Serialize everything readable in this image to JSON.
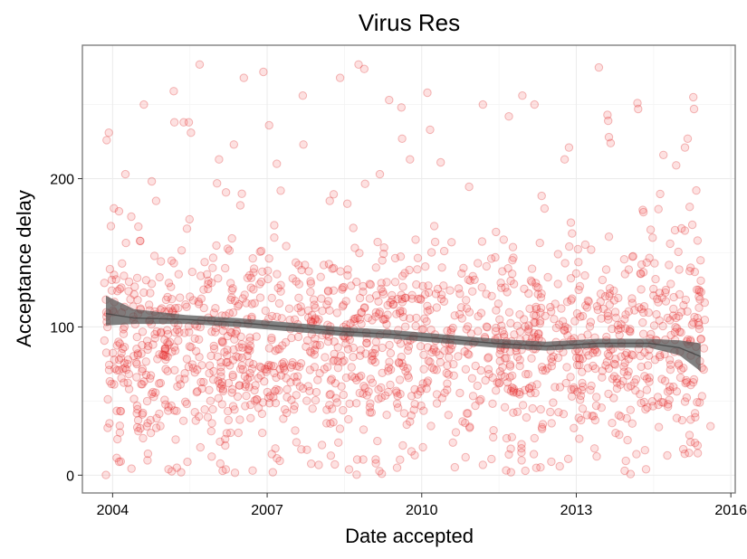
{
  "chart_data": {
    "type": "scatter",
    "title": "Virus Res",
    "xlabel": "Date accepted",
    "ylabel": "Acceptance delay",
    "x_ticks": [
      "2004",
      "2007",
      "2010",
      "2013",
      "2016"
    ],
    "y_ticks": [
      "0",
      "100",
      "200"
    ],
    "xlim": [
      "2003-06-01",
      "2016-02-01"
    ],
    "ylim": [
      -12,
      290
    ],
    "grid": true,
    "legend": "none",
    "point_color": "#f04040",
    "smooth_color": "#555555",
    "smooth": {
      "x": [
        "2003-11-15",
        "2004-06-01",
        "2005-06-01",
        "2006-06-01",
        "2007-06-01",
        "2008-06-01",
        "2009-06-01",
        "2010-06-01",
        "2011-06-01",
        "2012-06-01",
        "2013-06-01",
        "2014-06-01",
        "2015-01-01",
        "2015-06-01"
      ],
      "y": [
        109,
        106,
        105,
        103,
        100,
        97,
        95,
        92,
        89,
        87,
        89,
        89,
        86,
        80
      ],
      "band_low": [
        101,
        102,
        102,
        100,
        97,
        94,
        92,
        89,
        86,
        84,
        86,
        86,
        81,
        70
      ],
      "band_high": [
        121,
        112,
        108,
        106,
        103,
        100,
        98,
        95,
        92,
        90,
        92,
        92,
        91,
        89
      ]
    },
    "points": [
      {
        "x": "2003-11-20",
        "y": 226
      },
      {
        "x": "2003-12-05",
        "y": 231
      },
      {
        "x": "2004-01-10",
        "y": 180
      },
      {
        "x": "2003-12-20",
        "y": 168
      },
      {
        "x": "2004-02-15",
        "y": 178
      },
      {
        "x": "2004-04-01",
        "y": 203
      },
      {
        "x": "2004-08-10",
        "y": 250
      },
      {
        "x": "2004-11-05",
        "y": 185
      },
      {
        "x": "2005-03-10",
        "y": 259
      },
      {
        "x": "2005-03-15",
        "y": 238
      },
      {
        "x": "2005-05-20",
        "y": 238
      },
      {
        "x": "2005-06-25",
        "y": 238
      },
      {
        "x": "2005-07-10",
        "y": 231
      },
      {
        "x": "2005-09-10",
        "y": 277
      },
      {
        "x": "2006-01-25",
        "y": 213
      },
      {
        "x": "2006-05-10",
        "y": 223
      },
      {
        "x": "2006-06-25",
        "y": 182
      },
      {
        "x": "2006-07-20",
        "y": 268
      },
      {
        "x": "2006-12-05",
        "y": 272
      },
      {
        "x": "2007-03-10",
        "y": 210
      },
      {
        "x": "2007-01-15",
        "y": 236
      },
      {
        "x": "2007-09-10",
        "y": 256
      },
      {
        "x": "2007-09-15",
        "y": 223
      },
      {
        "x": "2008-03-20",
        "y": 185
      },
      {
        "x": "2008-06-01",
        "y": 268
      },
      {
        "x": "2008-10-10",
        "y": 277
      },
      {
        "x": "2008-11-20",
        "y": 274
      },
      {
        "x": "2009-03-10",
        "y": 203
      },
      {
        "x": "2009-05-15",
        "y": 253
      },
      {
        "x": "2009-08-10",
        "y": 248
      },
      {
        "x": "2009-08-15",
        "y": 227
      },
      {
        "x": "2009-10-10",
        "y": 213
      },
      {
        "x": "2010-02-10",
        "y": 258
      },
      {
        "x": "2010-03-01",
        "y": 233
      },
      {
        "x": "2010-05-15",
        "y": 211
      },
      {
        "x": "2011-03-10",
        "y": 250
      },
      {
        "x": "2011-09-10",
        "y": 242
      },
      {
        "x": "2011-12-15",
        "y": 256
      },
      {
        "x": "2012-03-10",
        "y": 250
      },
      {
        "x": "2012-10-10",
        "y": 213
      },
      {
        "x": "2012-11-10",
        "y": 221
      },
      {
        "x": "2013-06-10",
        "y": 275
      },
      {
        "x": "2013-08-10",
        "y": 243
      },
      {
        "x": "2013-08-15",
        "y": 239
      },
      {
        "x": "2013-08-20",
        "y": 228
      },
      {
        "x": "2013-09-01",
        "y": 224
      },
      {
        "x": "2014-03-10",
        "y": 251
      },
      {
        "x": "2014-03-15",
        "y": 247
      },
      {
        "x": "2014-09-10",
        "y": 216
      },
      {
        "x": "2014-12-10",
        "y": 209
      },
      {
        "x": "2015-02-10",
        "y": 221
      },
      {
        "x": "2015-03-01",
        "y": 227
      },
      {
        "x": "2015-04-10",
        "y": 255
      },
      {
        "x": "2015-04-15",
        "y": 247
      },
      {
        "x": "2015-03-15",
        "y": 181
      },
      {
        "x": "2015-05-01",
        "y": 192
      },
      {
        "x": "2003-12-10",
        "y": 35
      },
      {
        "x": "2004-09-05",
        "y": 10
      },
      {
        "x": "2005-02-01",
        "y": 4
      },
      {
        "x": "2005-04-01",
        "y": 5
      },
      {
        "x": "2005-05-01",
        "y": 2
      },
      {
        "x": "2005-06-15",
        "y": 9
      },
      {
        "x": "2006-03-10",
        "y": 20
      },
      {
        "x": "2007-02-10",
        "y": 2
      },
      {
        "x": "2008-05-20",
        "y": 22
      },
      {
        "x": "2009-02-10",
        "y": 8
      },
      {
        "x": "2009-07-10",
        "y": 5
      },
      {
        "x": "2009-08-20",
        "y": 20
      },
      {
        "x": "2010-08-10",
        "y": 22
      },
      {
        "x": "2011-03-10",
        "y": 7
      },
      {
        "x": "2011-09-10",
        "y": 14
      },
      {
        "x": "2011-09-25",
        "y": 2
      },
      {
        "x": "2011-12-10",
        "y": 10
      },
      {
        "x": "2012-01-05",
        "y": 3
      },
      {
        "x": "2012-03-10",
        "y": 25
      },
      {
        "x": "2012-11-05",
        "y": 11
      },
      {
        "x": "2013-05-10",
        "y": 18
      },
      {
        "x": "2013-12-10",
        "y": 3
      },
      {
        "x": "2014-05-10",
        "y": 4
      },
      {
        "x": "2015-03-10",
        "y": 15
      },
      {
        "x": "2015-05-10",
        "y": 20
      },
      {
        "x": "2015-08-10",
        "y": 33
      }
    ],
    "random_points": {
      "count": 1550,
      "x_from": "2003-11-01",
      "x_to": "2015-07-01",
      "center": 88,
      "spread": 37,
      "min": 0,
      "max": 200
    }
  }
}
